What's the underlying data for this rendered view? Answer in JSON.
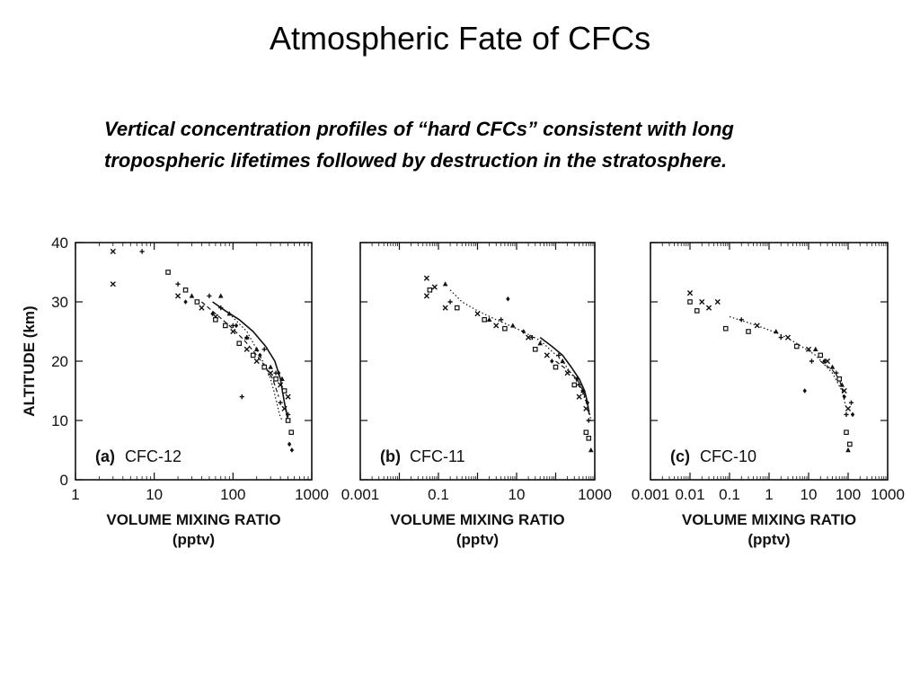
{
  "slide": {
    "title": "Atmospheric Fate of CFCs",
    "subtitle": "Vertical concentration profiles of “hard CFCs” consistent with long tropospheric lifetimes followed by destruction in the stratosphere."
  },
  "colors": {
    "ink": "#111111",
    "background": "#ffffff"
  },
  "chart_data": [
    {
      "type": "scatter",
      "panel_label": "(a)",
      "compound": "CFC-12",
      "xlabel": "VOLUME MIXING RATIO",
      "xunit": "(pptv)",
      "ylabel": "ALTITUDE (km)",
      "xscale": "log",
      "xlim": [
        1,
        1000
      ],
      "ylim": [
        0,
        40
      ],
      "xticks": [
        1,
        10,
        100,
        1000
      ],
      "xtick_labels": [
        "1",
        "10",
        "100",
        "1000"
      ],
      "yticks": [
        0,
        10,
        20,
        30,
        40
      ],
      "ytick_labels": [
        "0",
        "10",
        "20",
        "30",
        "40"
      ],
      "grid": false,
      "series": [
        {
          "marker": "x",
          "x": [
            3,
            3,
            20,
            40,
            60,
            100,
            150,
            200,
            300,
            400,
            500,
            450
          ],
          "y": [
            38.5,
            33,
            31,
            29,
            27.5,
            25,
            22,
            20,
            18,
            16,
            14,
            12
          ]
        },
        {
          "marker": "square",
          "x": [
            15,
            25,
            35,
            60,
            80,
            120,
            180,
            250,
            350,
            450,
            500,
            550
          ],
          "y": [
            35,
            32,
            30,
            27,
            26,
            23,
            21,
            19,
            17,
            15,
            10,
            8
          ]
        },
        {
          "marker": "plus",
          "x": [
            7,
            20,
            50,
            70,
            100,
            150,
            250,
            350,
            130,
            400,
            500
          ],
          "y": [
            38.5,
            33,
            31,
            29,
            26,
            24,
            22,
            18,
            14,
            13,
            11
          ]
        },
        {
          "marker": "triangle",
          "x": [
            30,
            70,
            90,
            150,
            200,
            300,
            420
          ],
          "y": [
            31,
            31,
            28,
            24,
            22,
            19,
            17
          ]
        },
        {
          "marker": "diamond",
          "x": [
            25,
            55,
            110,
            220,
            380,
            520,
            560
          ],
          "y": [
            30,
            28,
            26,
            21,
            18,
            6,
            5
          ]
        }
      ],
      "model_curves": [
        {
          "style": "solid",
          "x": [
            55,
            80,
            120,
            180,
            260,
            340,
            400,
            450,
            500
          ],
          "y": [
            30,
            28.5,
            27,
            25,
            22.5,
            20,
            17,
            13,
            10
          ]
        },
        {
          "style": "dashed",
          "x": [
            40,
            60,
            90,
            140,
            200,
            260,
            320,
            380
          ],
          "y": [
            30,
            28,
            26,
            23.5,
            21,
            19,
            17,
            14
          ]
        },
        {
          "style": "dotted",
          "x": [
            90,
            150,
            200,
            260,
            300,
            330,
            360,
            390,
            420
          ],
          "y": [
            28,
            25,
            22,
            19,
            17,
            15,
            13,
            11,
            10
          ]
        }
      ]
    },
    {
      "type": "scatter",
      "panel_label": "(b)",
      "compound": "CFC-11",
      "xlabel": "VOLUME MIXING RATIO",
      "xunit": "(pptv)",
      "xscale": "log",
      "xlim": [
        0.001,
        1000
      ],
      "ylim": [
        0,
        40
      ],
      "xticks": [
        0.001,
        0.1,
        10,
        1000
      ],
      "xtick_labels": [
        "0.001",
        "0.1",
        "10",
        "1000"
      ],
      "yticks": [
        0,
        10,
        20,
        30,
        40
      ],
      "grid": false,
      "series": [
        {
          "marker": "x",
          "x": [
            0.05,
            0.05,
            0.08,
            0.15,
            1,
            3,
            20,
            60,
            200,
            400,
            600
          ],
          "y": [
            34,
            31,
            32.5,
            29,
            28,
            26,
            24,
            21,
            18,
            14,
            12
          ]
        },
        {
          "marker": "square",
          "x": [
            0.06,
            0.3,
            1.5,
            5,
            30,
            100,
            300,
            600,
            700
          ],
          "y": [
            32,
            29,
            27,
            25.5,
            22,
            19,
            16,
            8,
            7
          ]
        },
        {
          "marker": "triangle",
          "x": [
            0.15,
            2,
            8,
            40,
            150,
            500,
            800
          ],
          "y": [
            33,
            27,
            26,
            23,
            20,
            15,
            5
          ]
        },
        {
          "marker": "plus",
          "x": [
            0.2,
            4,
            25,
            120,
            400,
            700
          ],
          "y": [
            30,
            27,
            24,
            21,
            16,
            10
          ]
        },
        {
          "marker": "diamond",
          "x": [
            6,
            15,
            80,
            350,
            650
          ],
          "y": [
            30.5,
            25,
            20,
            17,
            13
          ]
        }
      ],
      "model_curves": [
        {
          "style": "solid",
          "x": [
            40,
            80,
            150,
            250,
            400,
            550,
            650,
            720
          ],
          "y": [
            24,
            22.5,
            21,
            19,
            17,
            15,
            13,
            11
          ]
        },
        {
          "style": "dashed",
          "x": [
            100,
            200,
            350,
            500,
            620
          ],
          "y": [
            20,
            18.5,
            17,
            15,
            13
          ]
        },
        {
          "style": "dotted",
          "x": [
            0.2,
            0.4,
            1,
            3,
            10,
            40,
            150,
            400,
            700,
            800
          ],
          "y": [
            32,
            30,
            28.5,
            27,
            25.5,
            23.5,
            20,
            16,
            12,
            10
          ]
        }
      ]
    },
    {
      "type": "scatter",
      "panel_label": "(c)",
      "compound": "CFC-10",
      "xlabel": "VOLUME MIXING RATIO",
      "xunit": "(pptv)",
      "xscale": "log",
      "xlim": [
        0.001,
        1000
      ],
      "ylim": [
        0,
        40
      ],
      "xticks": [
        0.001,
        0.01,
        0.1,
        1,
        10,
        100,
        1000
      ],
      "xtick_labels": [
        "0.001",
        "0.01",
        "0.1",
        "1",
        "10",
        "100",
        "1000"
      ],
      "yticks": [
        0,
        10,
        20,
        30,
        40
      ],
      "grid": false,
      "series": [
        {
          "marker": "x",
          "x": [
            0.01,
            0.02,
            0.03,
            0.05,
            0.5,
            3,
            10,
            30,
            80,
            100
          ],
          "y": [
            31.5,
            30,
            29,
            30,
            26,
            24,
            22,
            20,
            15,
            12
          ]
        },
        {
          "marker": "square",
          "x": [
            0.01,
            0.015,
            0.08,
            0.3,
            5,
            20,
            60,
            90,
            110
          ],
          "y": [
            30,
            28.5,
            25.5,
            25,
            22.5,
            21,
            17,
            8,
            6
          ]
        },
        {
          "marker": "triangle",
          "x": [
            1.5,
            15,
            40,
            70,
            100
          ],
          "y": [
            25,
            22,
            19,
            16,
            5
          ]
        },
        {
          "marker": "plus",
          "x": [
            0.2,
            2,
            12,
            50,
            120,
            90
          ],
          "y": [
            27,
            24,
            20,
            18,
            13,
            11
          ]
        },
        {
          "marker": "diamond",
          "x": [
            8,
            25,
            80,
            130
          ],
          "y": [
            15,
            20,
            14,
            11
          ]
        }
      ],
      "model_curves": [
        {
          "style": "dotted",
          "x": [
            0.1,
            0.5,
            2,
            5,
            15,
            40,
            70,
            90
          ],
          "y": [
            27.5,
            26,
            24.5,
            23,
            21,
            18,
            15,
            12
          ]
        },
        {
          "style": "dashed",
          "x": [
            20,
            40,
            60,
            80
          ],
          "y": [
            20,
            18.5,
            17,
            14
          ]
        }
      ]
    }
  ]
}
